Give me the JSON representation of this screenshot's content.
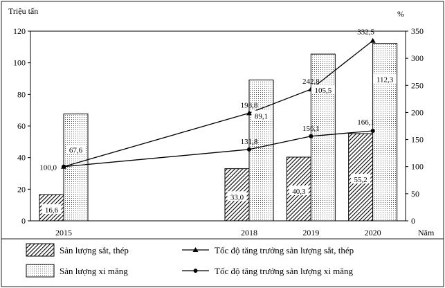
{
  "chart_data": {
    "type": "bar+line",
    "categories": [
      "2015",
      "2018",
      "2019",
      "2020"
    ],
    "left_axis": {
      "label": "Triệu tấn",
      "range": [
        0,
        120
      ],
      "ticks": [
        0,
        20,
        40,
        60,
        80,
        100,
        120
      ]
    },
    "right_axis": {
      "label": "%",
      "range": [
        0,
        350
      ],
      "ticks": [
        0,
        50,
        100,
        150,
        200,
        250,
        300,
        350
      ]
    },
    "x_axis_label": "Năm",
    "bar_series": [
      {
        "name": "Sản lượng sắt, thép",
        "pattern": "hatch",
        "values": [
          16.6,
          33.0,
          40.3,
          55.2
        ],
        "labels": [
          "16,6",
          "33,0",
          "40,3",
          "55,2"
        ]
      },
      {
        "name": "Sản lượng xi măng",
        "pattern": "dots",
        "values": [
          67.6,
          89.1,
          105.5,
          112.3
        ],
        "labels": [
          "67,6",
          "89,1",
          "105,5",
          "112,3"
        ]
      }
    ],
    "line_series": [
      {
        "name": "Tốc độ tăng trưởng sản lượng sắt, thép",
        "marker": "triangle",
        "values": [
          100.0,
          198.8,
          242.8,
          332.5
        ],
        "labels": [
          "100,0",
          "198,8",
          "242,8",
          "332,5"
        ]
      },
      {
        "name": "Tốc độ tăng trưởng sản lượng xi măng",
        "marker": "circle",
        "values": [
          100.0,
          131.8,
          156.1,
          166.1
        ],
        "labels": [
          "",
          "131,8",
          "156,1",
          "166,1"
        ]
      }
    ],
    "grid": false,
    "legend_position": "bottom"
  }
}
